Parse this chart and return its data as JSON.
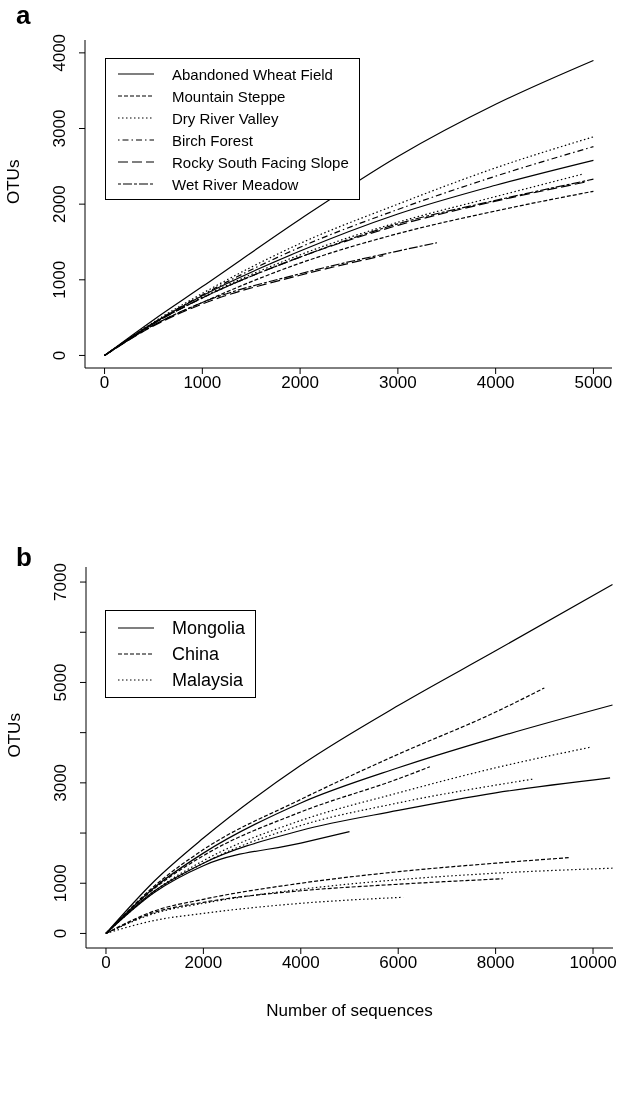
{
  "chart_data": [
    {
      "type": "line",
      "title": "a",
      "ylabel": "OTUs",
      "xlim": [
        -200,
        5190
      ],
      "ylim": [
        -166,
        4170
      ],
      "xticks": [
        0,
        1000,
        2000,
        3000,
        4000,
        5000
      ],
      "yticks": [
        0,
        1000,
        2000,
        3000,
        4000
      ],
      "legend": "top left",
      "series": [
        {
          "name": "Abandoned Wheat Field",
          "color": "#000000",
          "line_style": "solid",
          "x": [
            0,
            500,
            1000,
            2000,
            3000,
            4000,
            5000
          ],
          "values": [
            0,
            470,
            910,
            1800,
            2630,
            3320,
            3900
          ]
        },
        {
          "name": "Mountain Steppe",
          "color": "#000000",
          "line_style": "dashed",
          "x": [
            0,
            500,
            1000,
            2000,
            3000,
            4000,
            5000
          ],
          "values": [
            0,
            400,
            700,
            1220,
            1610,
            1910,
            2170
          ]
        },
        {
          "name": "Dry River Valley",
          "color": "#000000",
          "line_style": "dotted",
          "x": [
            0,
            500,
            1000,
            2000,
            3000,
            4000,
            5000
          ],
          "values": [
            0,
            440,
            820,
            1480,
            2000,
            2480,
            2890
          ]
        },
        {
          "name": "Birch Forest",
          "color": "#000000",
          "line_style": "dotdash",
          "x": [
            0,
            500,
            1000,
            2000,
            3000,
            4000,
            5000
          ],
          "values": [
            0,
            430,
            800,
            1430,
            1930,
            2370,
            2760
          ]
        },
        {
          "name": "Rocky South Facing Slope",
          "color": "#000000",
          "line_style": "longdash",
          "x": [
            0,
            500,
            1000,
            2000,
            3000,
            4000,
            4950
          ],
          "values": [
            0,
            420,
            760,
            1300,
            1720,
            2040,
            2300
          ]
        },
        {
          "name": "Wet River Meadow",
          "color": "#000000",
          "line_style": "twodash",
          "x": [
            0,
            500,
            1000,
            2000,
            3000,
            4000,
            5000
          ],
          "values": [
            0,
            420,
            760,
            1300,
            1740,
            2050,
            2330
          ]
        },
        {
          "color": "#000000",
          "line_style": "solid",
          "x": [
            0,
            500,
            1000,
            2000,
            3000,
            4000,
            5000
          ],
          "values": [
            0,
            430,
            790,
            1380,
            1870,
            2250,
            2580
          ]
        },
        {
          "color": "#000000",
          "line_style": "dotted",
          "x": [
            0,
            500,
            1000,
            2000,
            3000,
            4000,
            4900
          ],
          "values": [
            0,
            420,
            770,
            1330,
            1760,
            2100,
            2400
          ]
        },
        {
          "color": "#000000",
          "line_style": "twodash",
          "x": [
            0,
            500,
            1000,
            2000,
            3000,
            3400
          ],
          "values": [
            0,
            400,
            700,
            1080,
            1380,
            1490
          ]
        },
        {
          "color": "#000000",
          "line_style": "longdash",
          "x": [
            0,
            500,
            1000,
            2000,
            2850
          ],
          "values": [
            0,
            390,
            680,
            1060,
            1320
          ]
        }
      ]
    },
    {
      "type": "line",
      "title": "b",
      "xlabel": "Number of sequences",
      "ylabel": "OTUs",
      "xlim": [
        -410,
        10410
      ],
      "ylim": [
        -290,
        7300
      ],
      "xticks": [
        0,
        2000,
        4000,
        6000,
        8000,
        10000
      ],
      "yticks": [
        0,
        1000,
        {
          "value": 2000,
          "label": null
        },
        3000,
        {
          "value": 4000,
          "label": null
        },
        5000,
        {
          "value": 6000,
          "label": null
        },
        7000
      ],
      "legend": "top left",
      "series": [
        {
          "name": "Mongolia",
          "color": "#000000",
          "line_style": "solid",
          "x": [
            0,
            1000,
            2000,
            4000,
            6000,
            8000,
            10400
          ],
          "values": [
            0,
            1050,
            1900,
            3350,
            4540,
            5630,
            6950
          ]
        },
        {
          "name": "China",
          "color": "#000000",
          "line_style": "dashed",
          "x": [
            0,
            1000,
            2000,
            4000,
            6000,
            8000,
            9000
          ],
          "values": [
            0,
            950,
            1670,
            2670,
            3570,
            4410,
            4890
          ]
        },
        {
          "name": "Malaysia",
          "color": "#000000",
          "line_style": "dotted",
          "x": [
            0,
            1000,
            2000,
            4000,
            6000,
            8000,
            9950
          ],
          "values": [
            0,
            850,
            1450,
            2250,
            2800,
            3300,
            3710
          ]
        },
        {
          "color": "#000000",
          "line_style": "solid",
          "x": [
            0,
            1000,
            2000,
            4000,
            6000,
            8000,
            10400
          ],
          "values": [
            0,
            920,
            1600,
            2600,
            3300,
            3900,
            4550
          ]
        },
        {
          "color": "#000000",
          "line_style": "dashed",
          "x": [
            0,
            1000,
            2000,
            4000,
            6000,
            6650
          ],
          "values": [
            0,
            900,
            1550,
            2420,
            3080,
            3320
          ]
        },
        {
          "color": "#000000",
          "line_style": "dotted",
          "x": [
            0,
            1000,
            2000,
            4000,
            6000,
            8800
          ],
          "values": [
            0,
            830,
            1400,
            2150,
            2600,
            3080
          ]
        },
        {
          "color": "#000000",
          "line_style": "solid",
          "x": [
            0,
            1000,
            2000,
            4000,
            6000,
            8000,
            10350
          ],
          "values": [
            0,
            850,
            1400,
            2050,
            2450,
            2800,
            3100
          ]
        },
        {
          "color": "#000000",
          "line_style": "solid",
          "x": [
            0,
            1000,
            2000,
            4000,
            5000
          ],
          "values": [
            0,
            820,
            1350,
            1800,
            2030
          ]
        },
        {
          "color": "#000000",
          "line_style": "dashed",
          "x": [
            0,
            1000,
            2000,
            4000,
            6000,
            8000,
            9500
          ],
          "values": [
            0,
            450,
            680,
            1000,
            1230,
            1400,
            1510
          ]
        },
        {
          "color": "#000000",
          "line_style": "dotted",
          "x": [
            0,
            1000,
            2000,
            4000,
            6000,
            8000,
            10400
          ],
          "values": [
            0,
            400,
            600,
            880,
            1070,
            1200,
            1300
          ]
        },
        {
          "color": "#000000",
          "line_style": "dashed",
          "x": [
            0,
            1000,
            2000,
            4000,
            6000,
            8150
          ],
          "values": [
            0,
            420,
            620,
            850,
            980,
            1090
          ]
        },
        {
          "color": "#000000",
          "line_style": "dotted",
          "x": [
            0,
            1000,
            2000,
            4000,
            6100
          ],
          "values": [
            0,
            260,
            400,
            600,
            720
          ]
        }
      ]
    }
  ]
}
